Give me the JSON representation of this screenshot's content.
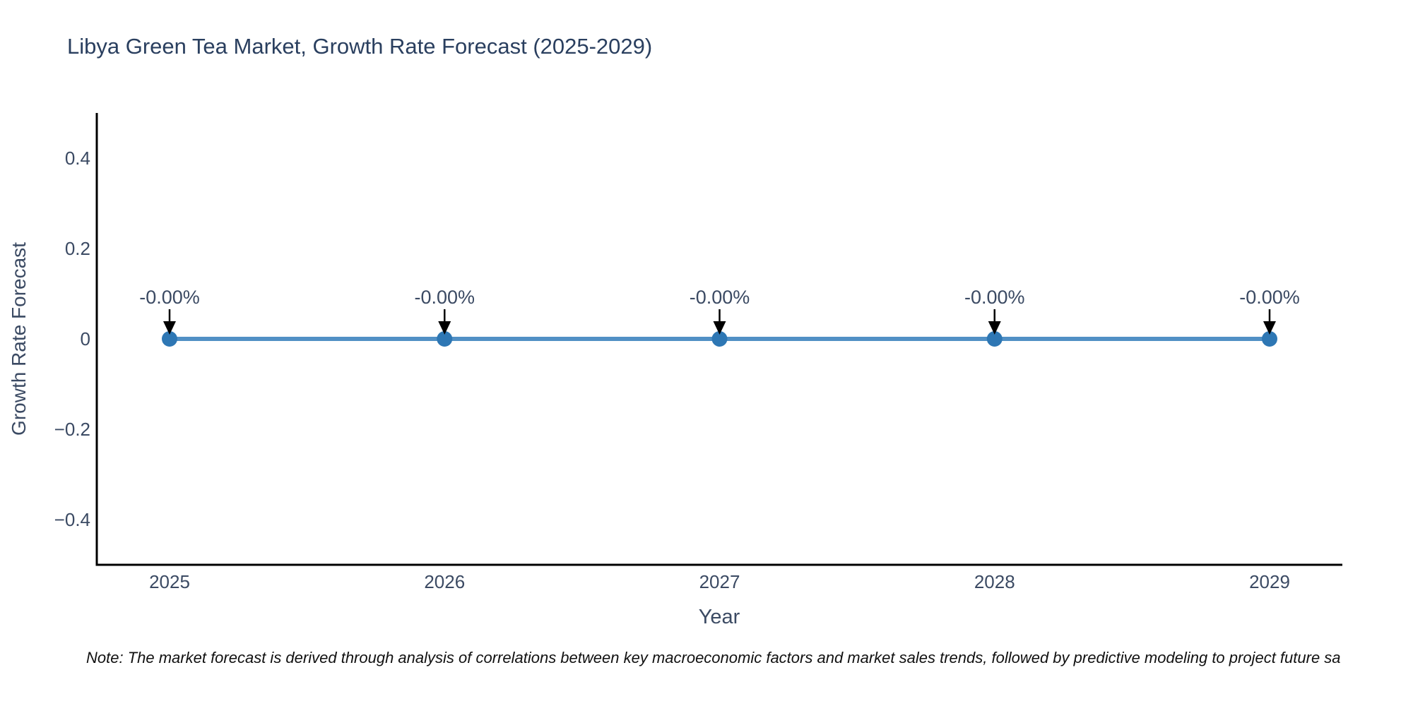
{
  "chart": {
    "title": "Libya Green Tea Market, Growth Rate Forecast (2025-2029)",
    "xlabel": "Year",
    "ylabel": "Growth Rate Forecast",
    "note": "Note: The market forecast is derived through analysis of correlations between key macroeconomic factors and market sales trends, followed by predictive modeling to project future sa"
  },
  "chart_data": {
    "type": "line",
    "x": [
      2025,
      2026,
      2027,
      2028,
      2029
    ],
    "values": [
      -0.0,
      -0.0,
      -0.0,
      -0.0,
      -0.0
    ],
    "point_labels": [
      "-0.00%",
      "-0.00%",
      "-0.00%",
      "-0.00%",
      "-0.00%"
    ],
    "title": "Libya Green Tea Market, Growth Rate Forecast (2025-2029)",
    "xlabel": "Year",
    "ylabel": "Growth Rate Forecast",
    "ylim": [
      -0.5,
      0.5
    ],
    "yticks": [
      0.4,
      0.2,
      0,
      -0.2,
      -0.4
    ],
    "xticks": [
      "2025",
      "2026",
      "2027",
      "2028",
      "2029"
    ],
    "grid": false,
    "legend": "none",
    "annotations_arrow": "down-black",
    "colors": {
      "line": "#5190c5",
      "marker": "#2e77b4",
      "axis": "#000000",
      "arrow": "#000000",
      "tick_text": "#3b4a63",
      "title_text": "#2a3f5f",
      "background": "#ffffff"
    }
  }
}
